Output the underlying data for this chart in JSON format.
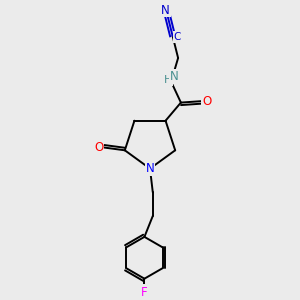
{
  "bg_color": "#ebebeb",
  "bond_color": "#000000",
  "atom_colors": {
    "N_nitrile": "#0000cd",
    "N_amide": "#4a9090",
    "N_ring": "#0000ff",
    "O": "#ff0000",
    "F": "#ff00ff",
    "default": "#000000"
  },
  "font_size_atom": 8.5,
  "lw": 1.4,
  "fig_w": 3.0,
  "fig_h": 3.0,
  "dpi": 100,
  "xlim": [
    0,
    10
  ],
  "ylim": [
    0,
    10
  ]
}
